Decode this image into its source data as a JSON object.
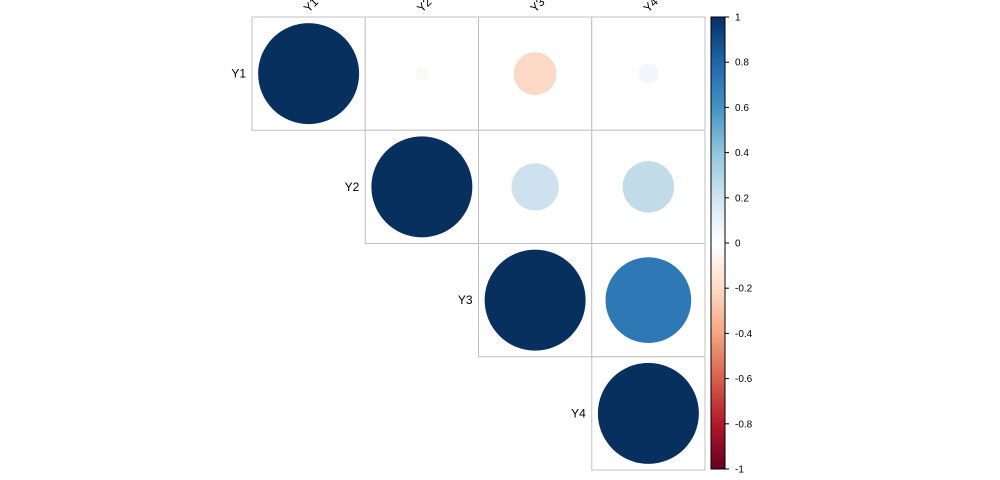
{
  "chart_data": {
    "type": "heatmap",
    "subtype": "correlation-circle-upper-triangle",
    "title": "",
    "xlabel": "",
    "ylabel": "",
    "variables": [
      "Y1",
      "Y2",
      "Y3",
      "Y4"
    ],
    "matrix": [
      [
        1.0,
        0.02,
        -0.18,
        0.04
      ],
      [
        null,
        1.0,
        0.22,
        0.26
      ],
      [
        null,
        null,
        1.0,
        0.72
      ],
      [
        null,
        null,
        null,
        1.0
      ]
    ],
    "cells": [
      {
        "row": "Y1",
        "col": "Y1",
        "value": 1.0,
        "color": "#08305E"
      },
      {
        "row": "Y1",
        "col": "Y2",
        "value": 0.02,
        "color": "#FBF8F6"
      },
      {
        "row": "Y1",
        "col": "Y3",
        "value": -0.18,
        "color": "#FCD8C6"
      },
      {
        "row": "Y1",
        "col": "Y4",
        "value": 0.04,
        "color": "#F2F6FA"
      },
      {
        "row": "Y2",
        "col": "Y2",
        "value": 1.0,
        "color": "#08305E"
      },
      {
        "row": "Y2",
        "col": "Y3",
        "value": 0.22,
        "color": "#CDE1EE"
      },
      {
        "row": "Y2",
        "col": "Y4",
        "value": 0.26,
        "color": "#C1DBE9"
      },
      {
        "row": "Y3",
        "col": "Y3",
        "value": 1.0,
        "color": "#08305E"
      },
      {
        "row": "Y3",
        "col": "Y4",
        "value": 0.72,
        "color": "#2E78B5"
      },
      {
        "row": "Y4",
        "col": "Y4",
        "value": 1.0,
        "color": "#08305E"
      }
    ],
    "colorbar": {
      "range": [
        -1,
        1
      ],
      "ticks": [
        "1",
        "0.8",
        "0.6",
        "0.4",
        "0.2",
        "0",
        "-0.2",
        "-0.4",
        "-0.6",
        "-0.8",
        "-1"
      ],
      "colors": [
        "#67001F",
        "#B2182B",
        "#D6604D",
        "#F4A582",
        "#FDDBC7",
        "#FFFFFF",
        "#D1E5F0",
        "#92C5DE",
        "#4393C3",
        "#2166AC",
        "#053061"
      ]
    },
    "legend_position": "right",
    "grid": true
  }
}
